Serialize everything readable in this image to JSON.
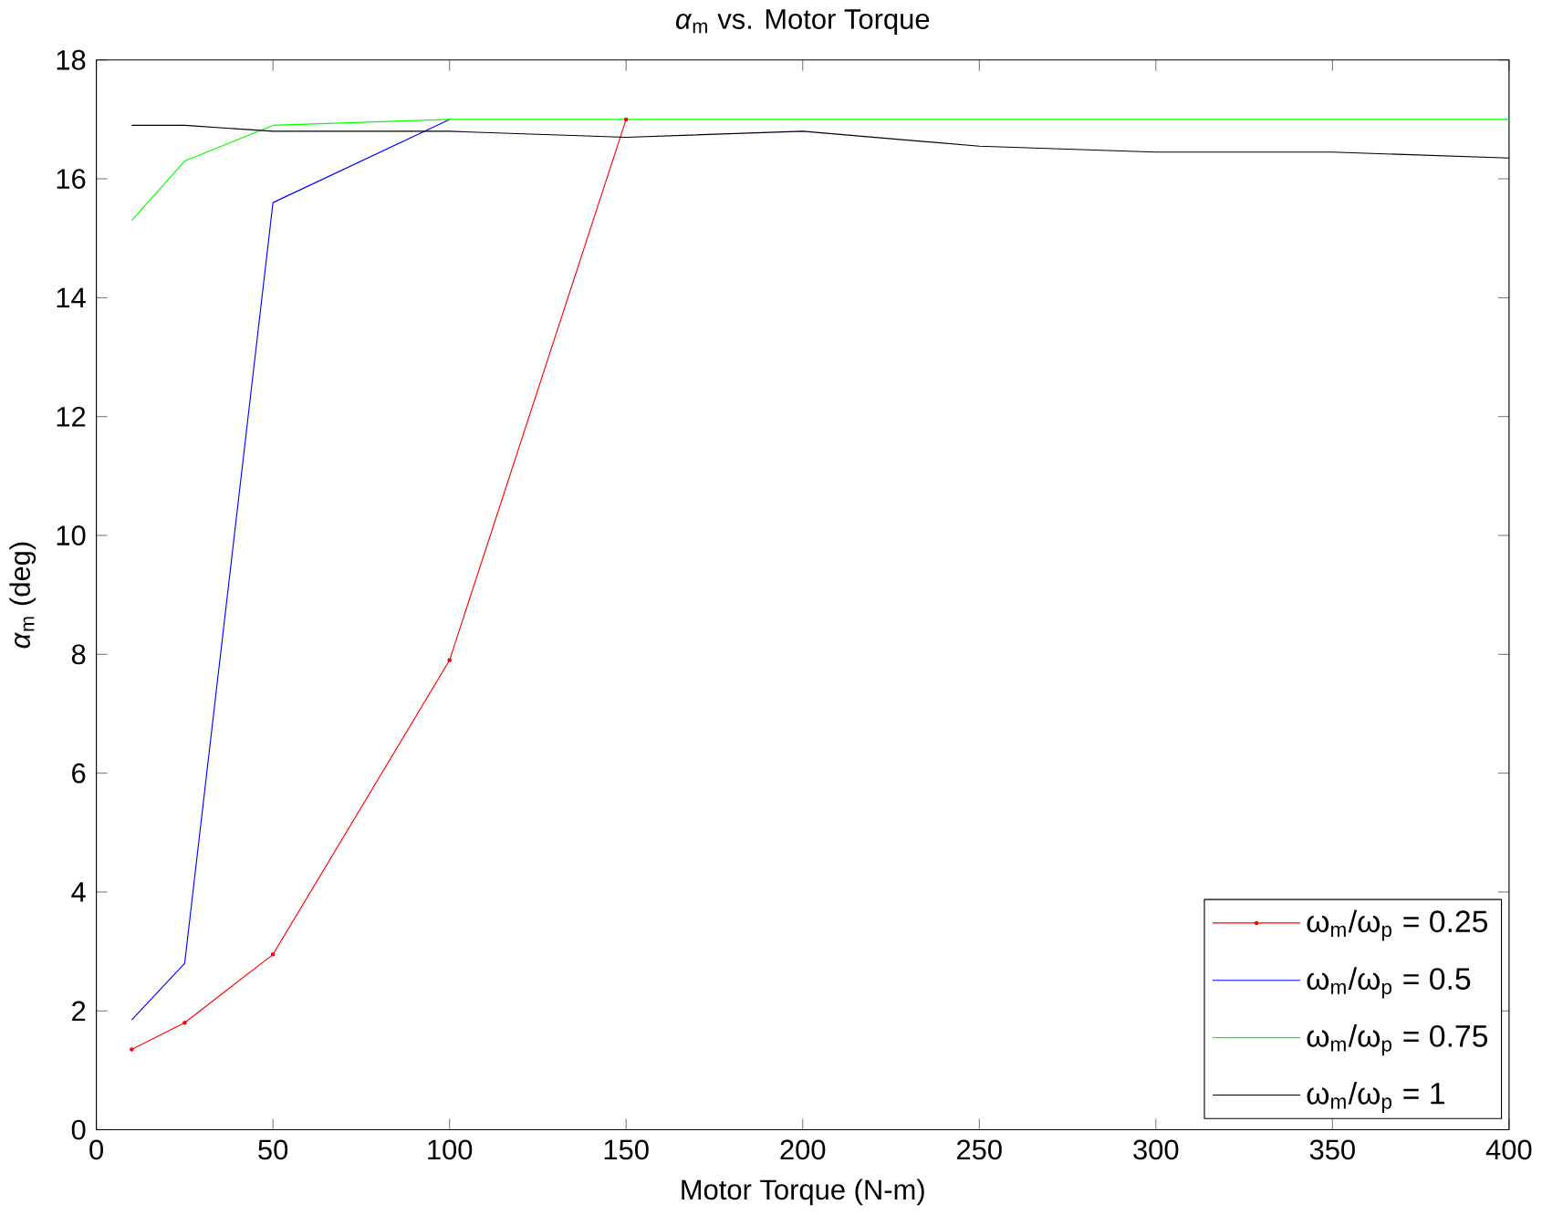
{
  "chart_data": {
    "type": "line",
    "title": "*α*$_{m}$ vs. Motor Torque",
    "xlabel": "Motor Torque (N-m)",
    "ylabel": "*α*$_{m}$ (deg)",
    "x": [
      10,
      25,
      50,
      100,
      150,
      200,
      250,
      300,
      350,
      400
    ],
    "series": [
      {
        "name": "ω$_{m}$/ω$_{p}$ = 0.25",
        "color": "#ff0000",
        "marker": "circle",
        "values": [
          1.35,
          1.8,
          2.95,
          7.9,
          17,
          null,
          null,
          null,
          null,
          null
        ]
      },
      {
        "name": "ω$_{m}$/ω$_{p}$ = 0.5",
        "color": "#0000ff",
        "values": [
          1.85,
          2.8,
          15.6,
          17,
          null,
          null,
          null,
          null,
          null,
          null
        ]
      },
      {
        "name": "ω$_{m}$/ω$_{p}$ = 0.75",
        "color": "#00ff00",
        "values": [
          15.3,
          16.3,
          16.9,
          17,
          17,
          17,
          17,
          17,
          17,
          17
        ]
      },
      {
        "name": "ω$_{m}$/ω$_{p}$ = 1",
        "color": "#000000",
        "values": [
          16.9,
          16.9,
          16.8,
          16.8,
          16.7,
          16.8,
          16.55,
          16.45,
          16.45,
          16.35
        ]
      }
    ],
    "xlim": [
      0,
      400
    ],
    "ylim": [
      0,
      18
    ],
    "xticks": [
      0,
      50,
      100,
      150,
      200,
      250,
      300,
      350,
      400
    ],
    "yticks": [
      0,
      2,
      4,
      6,
      8,
      10,
      12,
      14,
      16,
      18
    ],
    "grid": false,
    "legend": "bottom right"
  }
}
